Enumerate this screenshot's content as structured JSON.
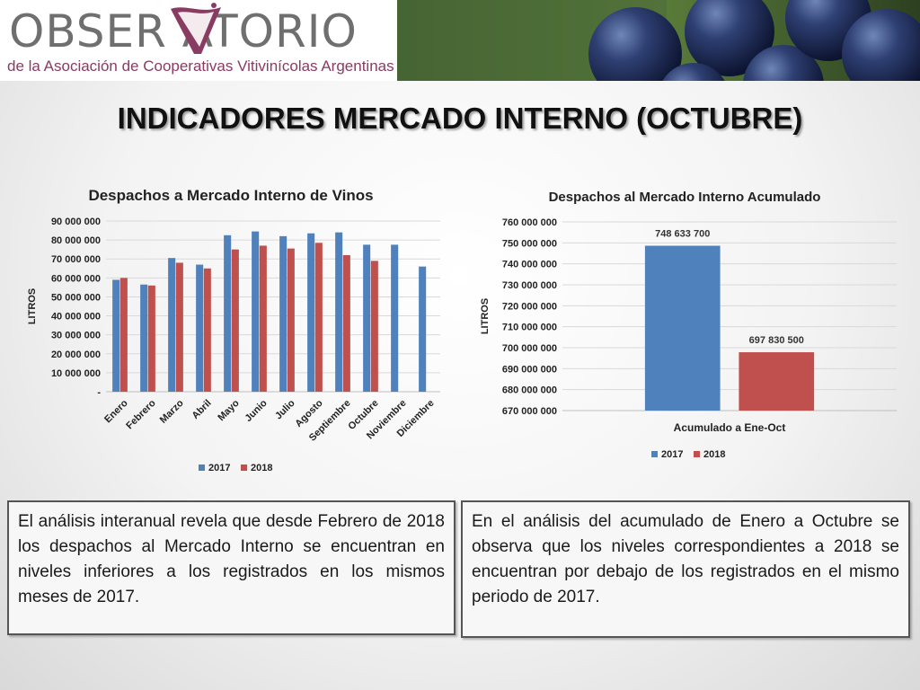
{
  "header": {
    "logo_text": "OBSER ATORIO",
    "logo_subtitle": "de la Asociación de Cooperativas Vitivinícolas Argentinas",
    "brand_color": "#8a3b62"
  },
  "page_title": "INDICADORES MERCADO INTERNO (OCTUBRE)",
  "chart_data": [
    {
      "type": "bar",
      "title": "Despachos a Mercado Interno de Vinos",
      "ylabel": "LITROS",
      "xlabel": "",
      "ylim": [
        0,
        90000000
      ],
      "yticks": [
        0,
        10000000,
        20000000,
        30000000,
        40000000,
        50000000,
        60000000,
        70000000,
        80000000,
        90000000
      ],
      "ytick_labels": [
        "-",
        "10 000 000",
        "20 000 000",
        "30 000 000",
        "40 000 000",
        "50 000 000",
        "60 000 000",
        "70 000 000",
        "80 000 000",
        "90 000 000"
      ],
      "categories": [
        "Enero",
        "Febrero",
        "Marzo",
        "Abril",
        "Mayo",
        "Junio",
        "Julio",
        "Agosto",
        "Septiembre",
        "Octubre",
        "Noviembre",
        "Diciembre"
      ],
      "series": [
        {
          "name": "2017",
          "color": "#4f81bd",
          "values": [
            59000000,
            56500000,
            70500000,
            67000000,
            82500000,
            84500000,
            82000000,
            83500000,
            84000000,
            77500000,
            77500000,
            66000000
          ]
        },
        {
          "name": "2018",
          "color": "#c0504d",
          "values": [
            60000000,
            56000000,
            68000000,
            65000000,
            75000000,
            77000000,
            75500000,
            78500000,
            72000000,
            69000000,
            null,
            null
          ]
        }
      ],
      "legend": "bottom",
      "grid": true
    },
    {
      "type": "bar",
      "title": "Despachos al Mercado Interno Acumulado",
      "ylabel": "LITROS",
      "xlabel": "",
      "ylim": [
        670000000,
        760000000
      ],
      "yticks": [
        670000000,
        680000000,
        690000000,
        700000000,
        710000000,
        720000000,
        730000000,
        740000000,
        750000000,
        760000000
      ],
      "ytick_labels": [
        "670 000 000",
        "680 000 000",
        "690 000 000",
        "700 000 000",
        "710 000 000",
        "720 000 000",
        "730 000 000",
        "740 000 000",
        "750 000 000",
        "760 000 000"
      ],
      "categories": [
        "Acumulado a Ene-Oct"
      ],
      "series": [
        {
          "name": "2017",
          "color": "#4f81bd",
          "values": [
            748633700
          ],
          "label": "748 633 700"
        },
        {
          "name": "2018",
          "color": "#c0504d",
          "values": [
            697830500
          ],
          "label": "697 830 500"
        }
      ],
      "legend": "bottom",
      "grid": true
    }
  ],
  "textboxes": {
    "left": "El análisis interanual revela que desde Febrero de 2018 los despachos al Mercado Interno se encuentran en niveles inferiores a los registrados en los mismos meses de 2017.",
    "right": "En el análisis del acumulado de Enero a Octubre se observa que los niveles correspondientes a 2018 se encuentran por debajo de los registrados en el mismo periodo de 2017."
  }
}
